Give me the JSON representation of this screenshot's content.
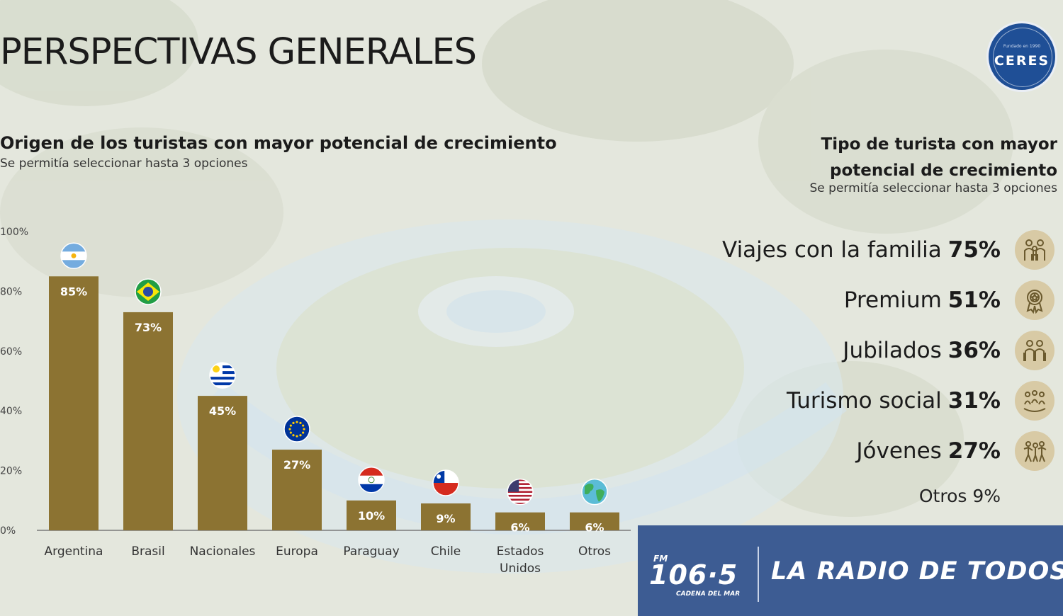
{
  "page": {
    "title": "PERSPECTIVAS GENERALES",
    "colors": {
      "bar": "#8c7332",
      "bar_label": "#ffffff",
      "accent_blue": "#1f4f96",
      "banner_bg": "#3d5c93",
      "icon_bg": "#d8caa5"
    }
  },
  "logo": {
    "text": "CERES",
    "small_text": "Fundado en 1990"
  },
  "chart_heading": {
    "title": "Origen de los turistas con mayor potencial de crecimiento",
    "subtitle": "Se permitía seleccionar hasta 3 opciones"
  },
  "chart_data": {
    "type": "bar",
    "categories": [
      "Argentina",
      "Brasil",
      "Nacionales",
      "Europa",
      "Paraguay",
      "Chile",
      "Estados Unidos",
      "Otros"
    ],
    "category_lines": [
      [
        "Argentina"
      ],
      [
        "Brasil"
      ],
      [
        "Nacionales"
      ],
      [
        "Europa"
      ],
      [
        "Paraguay"
      ],
      [
        "Chile"
      ],
      [
        "Estados",
        "Unidos"
      ],
      [
        "Otros"
      ]
    ],
    "values": [
      85,
      73,
      45,
      27,
      10,
      9,
      6,
      6
    ],
    "value_labels": [
      "85%",
      "73%",
      "45%",
      "27%",
      "10%",
      "9%",
      "6%",
      "6%"
    ],
    "flags": [
      "argentina-flag",
      "brazil-flag",
      "uruguay-flag",
      "eu-flag",
      "paraguay-flag",
      "chile-flag",
      "usa-flag",
      "globe"
    ],
    "ylim": [
      0,
      100
    ],
    "yticks": [
      0,
      20,
      40,
      60,
      80,
      100
    ],
    "ytick_labels": [
      "0%",
      "20%",
      "40%",
      "60%",
      "80%",
      "100%"
    ],
    "grid": false
  },
  "tipo": {
    "title": "Tipo de turista con mayor potencial de crecimiento",
    "subtitle": "Se permitía seleccionar hasta 3 opciones",
    "items": [
      {
        "label": "Viajes con la familia",
        "value": "75%",
        "icon": "family-icon"
      },
      {
        "label": "Premium",
        "value": "51%",
        "icon": "premium-badge-icon"
      },
      {
        "label": "Jubilados",
        "value": "36%",
        "icon": "seniors-icon"
      },
      {
        "label": "Turismo social",
        "value": "31%",
        "icon": "social-group-icon"
      },
      {
        "label": "Jóvenes",
        "value": "27%",
        "icon": "youth-icon"
      }
    ],
    "otros": "Otros 9%"
  },
  "banner": {
    "fm": "FM",
    "frequency": "106·5",
    "network": "CADENA DEL MAR",
    "slogan": "LA RADIO DE TODOS"
  }
}
